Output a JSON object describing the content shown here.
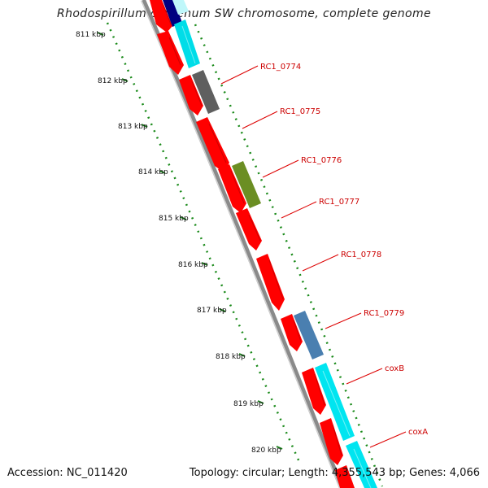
{
  "title": "Rhodospirillum centenum SW chromosome, complete genome",
  "footer": {
    "accession": "Accession: NC_011420",
    "summary": "Topology: circular; Length: 4,355,543 bp; Genes: 4,066"
  },
  "ticks": [
    "811 kbp",
    "812 kbp",
    "813 kbp",
    "814 kbp",
    "815 kbp",
    "816 kbp",
    "817 kbp",
    "818 kbp",
    "819 kbp",
    "820 kbp"
  ],
  "gene_labels": [
    "RC1_0774",
    "RC1_0775",
    "RC1_0776",
    "RC1_0777",
    "RC1_0778",
    "RC1_0779",
    "coxB",
    "coxA"
  ],
  "colors": {
    "cds_red": "#ff0000",
    "cyan": "#00e5f0",
    "dark_gray": "#666666",
    "olive": "#6b8e23",
    "steel_blue": "#4a7fb0",
    "navy": "#000080",
    "backbone": "#808080",
    "ticks_green": "#006400",
    "label_red": "#cc0000"
  }
}
